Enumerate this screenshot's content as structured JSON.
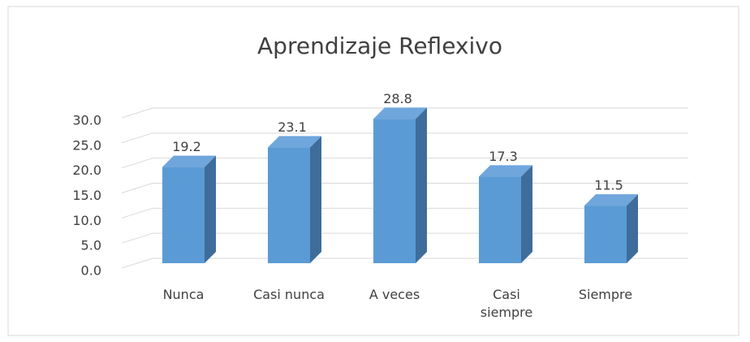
{
  "chart_data": {
    "type": "bar3d",
    "title": "Aprendizaje Reflexivo",
    "categories": [
      "Nunca",
      "Casi nunca",
      "A veces",
      "Casi siempre",
      "Siempre"
    ],
    "values": [
      19.2,
      23.1,
      28.8,
      17.3,
      11.5
    ],
    "color": "#5b9bd5",
    "ylim": [
      0,
      30
    ],
    "yticks": [
      {
        "value": 0,
        "label": "0.0"
      },
      {
        "value": 5,
        "label": "5.0"
      },
      {
        "value": 10,
        "label": "10.0"
      },
      {
        "value": 15,
        "label": "15.0"
      },
      {
        "value": 20,
        "label": "20.0"
      },
      {
        "value": 25,
        "label": "25.0"
      },
      {
        "value": 30,
        "label": "30.0"
      }
    ],
    "grid": true
  }
}
